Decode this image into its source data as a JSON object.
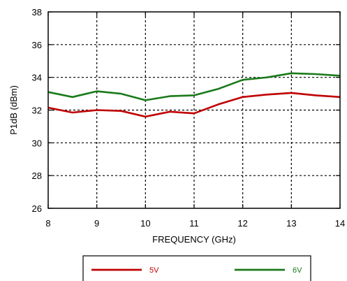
{
  "chart_data": {
    "type": "line",
    "title": "",
    "xlabel": "FREQUENCY (GHz)",
    "ylabel": "P1dB (dBm)",
    "xlim": [
      8,
      14
    ],
    "ylim": [
      26,
      38
    ],
    "x_ticks": [
      8,
      9,
      10,
      11,
      12,
      13,
      14
    ],
    "y_ticks": [
      26,
      28,
      30,
      32,
      34,
      36,
      38
    ],
    "x_tick_labels": [
      "8",
      "9",
      "10",
      "11",
      "12",
      "13",
      "14"
    ],
    "y_tick_labels": [
      "26",
      "28",
      "30",
      "32",
      "34",
      "36",
      "38"
    ],
    "grid": true,
    "grid_style": "dotted",
    "legend_position": "bottom",
    "x": [
      8,
      8.5,
      9,
      9.5,
      10,
      10.5,
      11,
      11.5,
      12,
      12.5,
      13,
      13.5,
      14
    ],
    "series": [
      {
        "name": "5V",
        "color": "#c00000",
        "values": [
          32.15,
          31.85,
          32.0,
          31.95,
          31.6,
          31.9,
          31.8,
          32.35,
          32.8,
          32.95,
          33.05,
          32.9,
          32.8
        ]
      },
      {
        "name": "6V",
        "color": "#1a7a1a",
        "values": [
          33.1,
          32.8,
          33.15,
          33.0,
          32.6,
          32.85,
          32.9,
          33.3,
          33.85,
          34.0,
          34.25,
          34.2,
          34.1
        ]
      }
    ]
  }
}
